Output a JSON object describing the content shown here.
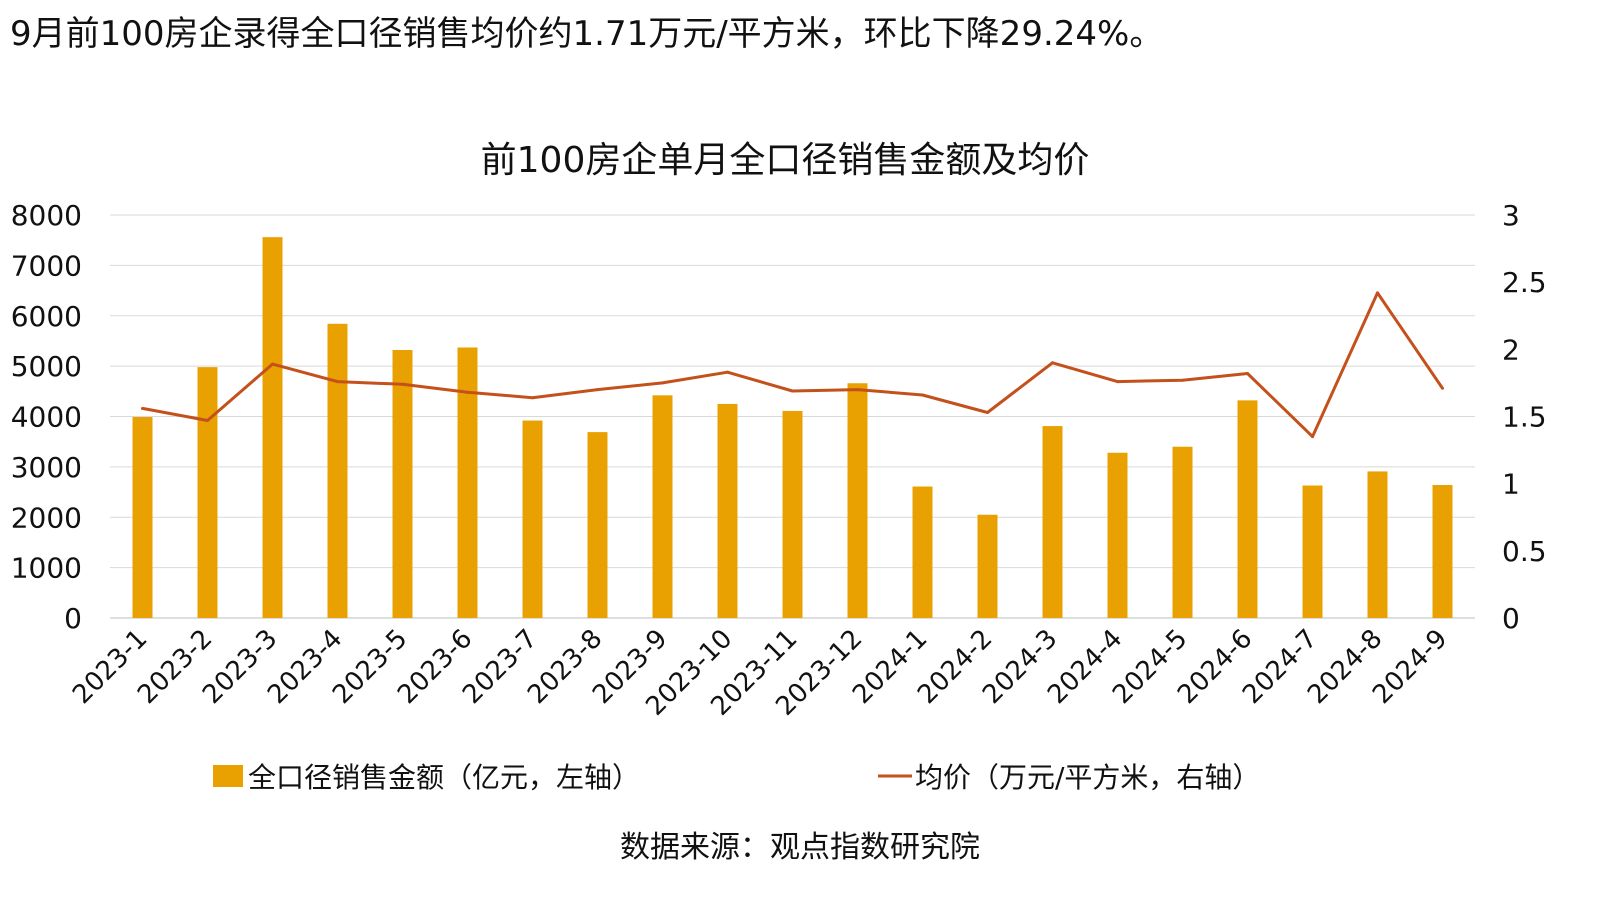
{
  "headline": "9月前100房企录得全口径销售均价约1.71万元/平方米，环比下降29.24%。",
  "source": "数据来源：观点指数研究院",
  "colors": {
    "bar": "#E8A100",
    "line": "#C4511B",
    "grid": "#D9D9D9",
    "axis": "#BFBFBF"
  },
  "chart_data": {
    "type": "bar",
    "title": "前100房企单月全口径销售金额及均价",
    "categories": [
      "2023-1",
      "2023-2",
      "2023-3",
      "2023-4",
      "2023-5",
      "2023-6",
      "2023-7",
      "2023-8",
      "2023-9",
      "2023-10",
      "2023-11",
      "2023-12",
      "2024-1",
      "2024-2",
      "2024-3",
      "2024-4",
      "2024-5",
      "2024-6",
      "2024-7",
      "2024-8",
      "2024-9"
    ],
    "series": [
      {
        "name": "全口径销售金额（亿元，左轴）",
        "type": "bar",
        "axis": "left",
        "values": [
          3990,
          4980,
          7560,
          5840,
          5320,
          5370,
          3920,
          3690,
          4420,
          4250,
          4110,
          4660,
          2610,
          2050,
          3810,
          3280,
          3400,
          4320,
          2630,
          2910,
          2640
        ]
      },
      {
        "name": "均价（万元/平方米，右轴）",
        "type": "line",
        "axis": "right",
        "values": [
          1.56,
          1.47,
          1.89,
          1.76,
          1.74,
          1.68,
          1.64,
          1.7,
          1.75,
          1.83,
          1.69,
          1.7,
          1.66,
          1.53,
          1.9,
          1.76,
          1.77,
          1.82,
          1.35,
          2.42,
          1.71
        ]
      }
    ],
    "y_left": {
      "min": 0,
      "max": 8000,
      "ticks": [
        "0",
        "1000",
        "2000",
        "3000",
        "4000",
        "5000",
        "6000",
        "7000",
        "8000"
      ]
    },
    "y_right": {
      "min": 0,
      "max": 3,
      "ticks": [
        "0",
        "0.5",
        "1",
        "1.5",
        "2",
        "2.5",
        "3"
      ]
    },
    "grid": true,
    "legend": "bottom"
  }
}
